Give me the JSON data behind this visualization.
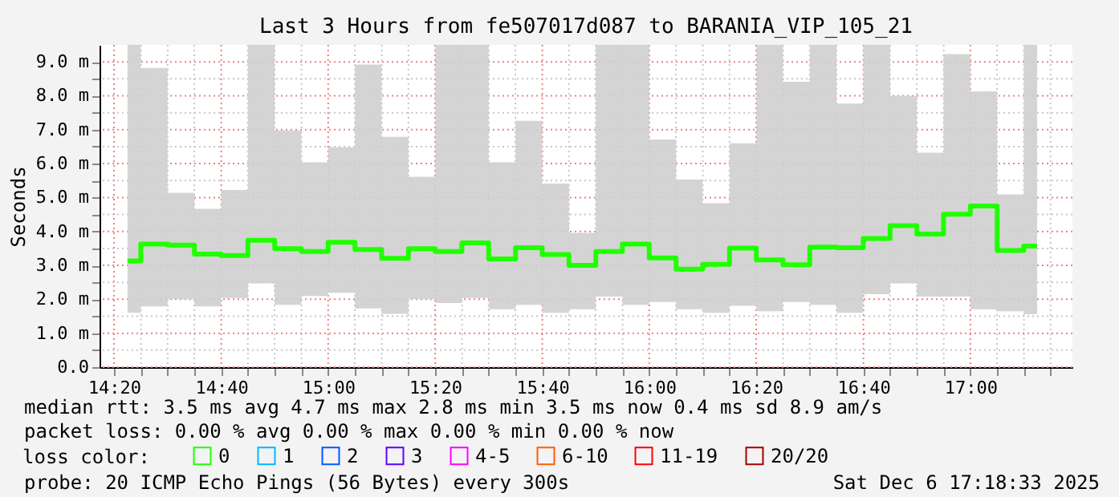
{
  "chart_data": {
    "type": "step",
    "title": "Last 3 Hours from fe507017d087 to BARANIA_VIP_105_21",
    "ylabel": "Seconds",
    "legend_title": "loss color:",
    "legend": "bottom left",
    "grid": true,
    "x": [
      14.375,
      14.458,
      14.542,
      14.625,
      14.708,
      14.792,
      14.875,
      14.958,
      15.042,
      15.125,
      15.208,
      15.292,
      15.375,
      15.458,
      15.542,
      15.625,
      15.708,
      15.792,
      15.875,
      15.958,
      16.042,
      16.125,
      16.208,
      16.292,
      16.375,
      16.458,
      16.542,
      16.625,
      16.708,
      16.792,
      16.875,
      16.958,
      17.042,
      17.125,
      17.208
    ],
    "xlim": [
      14.288,
      17.318
    ],
    "ylim": [
      0,
      9.5
    ],
    "xticks": [
      {
        "value": 14.333,
        "label": "14:20"
      },
      {
        "value": 14.417,
        "label": null
      },
      {
        "value": 14.5,
        "label": null
      },
      {
        "value": 14.583,
        "label": null
      },
      {
        "value": 14.667,
        "label": "14:40"
      },
      {
        "value": 14.75,
        "label": null
      },
      {
        "value": 14.833,
        "label": null
      },
      {
        "value": 14.917,
        "label": null
      },
      {
        "value": 15,
        "label": "15:00"
      },
      {
        "value": 15.083,
        "label": null
      },
      {
        "value": 15.167,
        "label": null
      },
      {
        "value": 15.25,
        "label": null
      },
      {
        "value": 15.333,
        "label": "15:20"
      },
      {
        "value": 15.417,
        "label": null
      },
      {
        "value": 15.5,
        "label": null
      },
      {
        "value": 15.583,
        "label": null
      },
      {
        "value": 15.667,
        "label": "15:40"
      },
      {
        "value": 15.75,
        "label": null
      },
      {
        "value": 15.833,
        "label": null
      },
      {
        "value": 15.917,
        "label": null
      },
      {
        "value": 16,
        "label": "16:00"
      },
      {
        "value": 16.083,
        "label": null
      },
      {
        "value": 16.167,
        "label": null
      },
      {
        "value": 16.25,
        "label": null
      },
      {
        "value": 16.333,
        "label": "16:20"
      },
      {
        "value": 16.417,
        "label": null
      },
      {
        "value": 16.5,
        "label": null
      },
      {
        "value": 16.583,
        "label": null
      },
      {
        "value": 16.667,
        "label": "16:40"
      },
      {
        "value": 16.75,
        "label": null
      },
      {
        "value": 16.833,
        "label": null
      },
      {
        "value": 16.917,
        "label": null
      },
      {
        "value": 17,
        "label": "17:00"
      },
      {
        "value": 17.083,
        "label": null
      },
      {
        "value": 17.167,
        "label": null
      },
      {
        "value": 17.25,
        "label": null
      }
    ],
    "yticks": [
      {
        "value": 0,
        "label": "0.0"
      },
      {
        "value": 0.5,
        "label": null
      },
      {
        "value": 1,
        "label": "1.0 m"
      },
      {
        "value": 1.5,
        "label": null
      },
      {
        "value": 2,
        "label": "2.0 m"
      },
      {
        "value": 2.5,
        "label": null
      },
      {
        "value": 3,
        "label": "3.0 m"
      },
      {
        "value": 3.5,
        "label": null
      },
      {
        "value": 4,
        "label": "4.0 m"
      },
      {
        "value": 4.5,
        "label": null
      },
      {
        "value": 5,
        "label": "5.0 m"
      },
      {
        "value": 5.5,
        "label": null
      },
      {
        "value": 6,
        "label": "6.0 m"
      },
      {
        "value": 6.5,
        "label": null
      },
      {
        "value": 7,
        "label": "7.0 m"
      },
      {
        "value": 7.5,
        "label": null
      },
      {
        "value": 8,
        "label": "8.0 m"
      },
      {
        "value": 8.5,
        "label": null
      },
      {
        "value": 9,
        "label": "9.0 m"
      }
    ],
    "series": [
      {
        "name": "0",
        "color": "#20ff00",
        "values": [
          3.13,
          3.63,
          3.6,
          3.33,
          3.29,
          3.74,
          3.49,
          3.41,
          3.68,
          3.47,
          3.21,
          3.49,
          3.41,
          3.66,
          3.19,
          3.52,
          3.32,
          3.0,
          3.41,
          3.63,
          3.22,
          2.89,
          3.03,
          3.51,
          3.16,
          3.02,
          3.54,
          3.52,
          3.79,
          4.17,
          3.92,
          4.51,
          4.75,
          3.44,
          3.57
        ],
        "lower": [
          1.6,
          1.79,
          2.0,
          1.79,
          2.04,
          2.47,
          1.84,
          2.1,
          2.19,
          1.73,
          1.57,
          2.0,
          1.89,
          2.04,
          1.71,
          1.84,
          1.6,
          1.71,
          2.08,
          1.84,
          1.92,
          1.71,
          1.6,
          1.81,
          1.65,
          1.92,
          1.84,
          1.6,
          2.15,
          2.47,
          2.08,
          2.08,
          1.71,
          1.65,
          1.56
        ],
        "upper": [
          9.5,
          8.82,
          5.14,
          4.67,
          5.22,
          9.5,
          6.98,
          6.04,
          6.48,
          8.92,
          6.79,
          5.61,
          9.5,
          9.5,
          6.04,
          7.26,
          5.41,
          3.96,
          9.5,
          9.5,
          6.71,
          5.53,
          4.83,
          6.6,
          9.5,
          8.41,
          9.5,
          7.77,
          9.5,
          8.0,
          6.32,
          9.23,
          8.13,
          5.09,
          9.5
        ]
      },
      {
        "name": "1",
        "color": "#00b8ff",
        "values": [
          null,
          null,
          null,
          null,
          null,
          null,
          null,
          null,
          null,
          null,
          null,
          null,
          null,
          null,
          null,
          null,
          null,
          null,
          null,
          null,
          null,
          null,
          null,
          null,
          null,
          null,
          null,
          null,
          null,
          null,
          null,
          null,
          null,
          null,
          null
        ]
      },
      {
        "name": "2",
        "color": "#0059ff",
        "values": [
          null,
          null,
          null,
          null,
          null,
          null,
          null,
          null,
          null,
          null,
          null,
          null,
          null,
          null,
          null,
          null,
          null,
          null,
          null,
          null,
          null,
          null,
          null,
          null,
          null,
          null,
          null,
          null,
          null,
          null,
          null,
          null,
          null,
          null,
          null
        ]
      },
      {
        "name": "3",
        "color": "#5e00ff",
        "values": [
          null,
          null,
          null,
          null,
          null,
          null,
          null,
          null,
          null,
          null,
          null,
          null,
          null,
          null,
          null,
          null,
          null,
          null,
          null,
          null,
          null,
          null,
          null,
          null,
          null,
          null,
          null,
          null,
          null,
          null,
          null,
          null,
          null,
          null,
          null
        ]
      },
      {
        "name": "4-5",
        "color": "#ff00ff",
        "values": [
          null,
          null,
          null,
          null,
          null,
          null,
          null,
          null,
          null,
          null,
          null,
          null,
          null,
          null,
          null,
          null,
          null,
          null,
          null,
          null,
          null,
          null,
          null,
          null,
          null,
          null,
          null,
          null,
          null,
          null,
          null,
          null,
          null,
          null,
          null
        ]
      },
      {
        "name": "6-10",
        "color": "#ff5e00",
        "values": [
          null,
          null,
          null,
          null,
          null,
          null,
          null,
          null,
          null,
          null,
          null,
          null,
          null,
          null,
          null,
          null,
          null,
          null,
          null,
          null,
          null,
          null,
          null,
          null,
          null,
          null,
          null,
          null,
          null,
          null,
          null,
          null,
          null,
          null,
          null
        ]
      },
      {
        "name": "11-19",
        "color": "#ff0000",
        "values": [
          null,
          null,
          null,
          null,
          null,
          null,
          null,
          null,
          null,
          null,
          null,
          null,
          null,
          null,
          null,
          null,
          null,
          null,
          null,
          null,
          null,
          null,
          null,
          null,
          null,
          null,
          null,
          null,
          null,
          null,
          null,
          null,
          null,
          null,
          null
        ]
      },
      {
        "name": "20/20",
        "color": "#a10000",
        "values": [
          null,
          null,
          null,
          null,
          null,
          null,
          null,
          null,
          null,
          null,
          null,
          null,
          null,
          null,
          null,
          null,
          null,
          null,
          null,
          null,
          null,
          null,
          null,
          null,
          null,
          null,
          null,
          null,
          null,
          null,
          null,
          null,
          null,
          null,
          null
        ]
      }
    ],
    "annotations": [
      "median rtt:  3.5 ms avg  4.7 ms max  2.8 ms min  3.5 ms now  0.4 ms sd  8.9   am/s",
      "packet loss: 0.00 % avg  0.00 % max  0.00 % min  0.00 % now",
      "probe:       20 ICMP Echo Pings (56 Bytes) every 300s",
      "Sat Dec  6 17:18:33 2025"
    ]
  }
}
